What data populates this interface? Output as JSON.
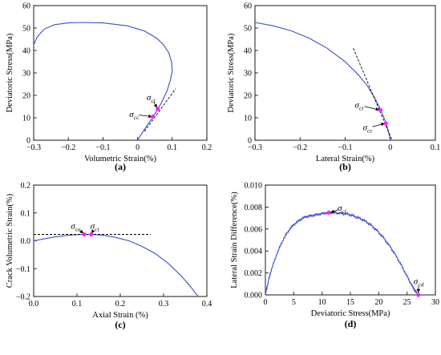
{
  "chart_data": [
    {
      "type": "line",
      "panel_label": "(a)",
      "xlabel": "Volumetric Strain(%)",
      "ylabel": "Deviatoric Stress(MPa)",
      "xlim": [
        -0.3,
        0.2
      ],
      "ylim": [
        0,
        60
      ],
      "xticks": [
        -0.3,
        -0.2,
        -0.1,
        0,
        0.1,
        0.2
      ],
      "yticks": [
        0,
        10,
        20,
        30,
        40,
        50,
        60
      ],
      "xtick_labels": [
        "−0.3",
        "−0.2",
        "−0.1",
        "0",
        "0.1",
        "0.2"
      ],
      "ytick_labels": [
        "0",
        "10",
        "20",
        "30",
        "40",
        "50",
        "60"
      ],
      "series": [
        {
          "style": "solid",
          "color": "#3b4bd4",
          "x": [
            0.0,
            0.012,
            0.025,
            0.04,
            0.055,
            0.07,
            0.085,
            0.095,
            0.1,
            0.098,
            0.09,
            0.075,
            0.055,
            0.02,
            -0.03,
            -0.1,
            -0.16,
            -0.2,
            -0.24,
            -0.27,
            -0.29,
            -0.3
          ],
          "y": [
            0,
            3,
            6,
            9.5,
            13,
            17,
            22,
            27,
            31,
            35,
            39,
            42.5,
            45.5,
            48.7,
            51,
            52.3,
            52.5,
            52.3,
            51.5,
            49.5,
            46,
            42.5
          ]
        },
        {
          "style": "dashed",
          "color": "#000000",
          "x": [
            0.02,
            0.11
          ],
          "y": [
            4,
            23
          ]
        }
      ],
      "points": [
        {
          "x": 0.044,
          "y": 10.5,
          "color": "#ff22ff"
        },
        {
          "x": 0.058,
          "y": 14,
          "color": "#ff22ff"
        }
      ],
      "annotations": [
        {
          "sym": "σ",
          "sub": "ci",
          "x": 0.04,
          "y": 19,
          "ax": 0.056,
          "ay": 14.4
        },
        {
          "sym": "σ",
          "sub": "cc",
          "x": -0.01,
          "y": 11.5,
          "ax": 0.042,
          "ay": 10.5
        }
      ]
    },
    {
      "type": "line",
      "panel_label": "(b)",
      "xlabel": "Lateral Strain(%)",
      "ylabel": "Deviatoric Stress(MPa)",
      "xlim": [
        -0.3,
        0.1
      ],
      "ylim": [
        0,
        60
      ],
      "xticks": [
        -0.3,
        -0.2,
        -0.1,
        0,
        0.1
      ],
      "yticks": [
        0,
        10,
        20,
        30,
        40,
        50,
        60
      ],
      "xtick_labels": [
        "−0.3",
        "−0.2",
        "−0.1",
        "0",
        "0.1"
      ],
      "ytick_labels": [
        "0",
        "10",
        "20",
        "30",
        "40",
        "50",
        "60"
      ],
      "series": [
        {
          "style": "solid",
          "color": "#3b4bd4",
          "x": [
            0.0,
            -0.003,
            -0.007,
            -0.012,
            -0.018,
            -0.025,
            -0.035,
            -0.05,
            -0.07,
            -0.1,
            -0.14,
            -0.18,
            -0.22,
            -0.26,
            -0.3
          ],
          "y": [
            0,
            3,
            6,
            9,
            12,
            15,
            19,
            24,
            29,
            35,
            41,
            45.5,
            48.8,
            51,
            52.5
          ]
        },
        {
          "style": "dashed",
          "color": "#000000",
          "x": [
            -0.082,
            0.004
          ],
          "y": [
            41,
            0
          ]
        }
      ],
      "points": [
        {
          "x": -0.022,
          "y": 13.5,
          "color": "#ff22ff"
        },
        {
          "x": -0.01,
          "y": 7.5,
          "color": "#ff22ff"
        }
      ],
      "annotations": [
        {
          "sym": "σ",
          "sub": "ci",
          "x": -0.068,
          "y": 15.5,
          "ax": -0.024,
          "ay": 13.5
        },
        {
          "sym": "σ",
          "sub": "cc",
          "x": -0.05,
          "y": 5.5,
          "ax": -0.012,
          "ay": 7.5
        }
      ]
    },
    {
      "type": "line",
      "panel_label": "(c)",
      "xlabel": "Axial  Strain (%)",
      "ylabel": "Crack Volumetric Strain(%)",
      "xlim": [
        0,
        0.4
      ],
      "ylim": [
        -0.2,
        0.2
      ],
      "xticks": [
        0,
        0.1,
        0.2,
        0.3,
        0.4
      ],
      "yticks": [
        -0.2,
        -0.1,
        0,
        0.1,
        0.2
      ],
      "xtick_labels": [
        "0.0",
        "0.1",
        "0.2",
        "0.3",
        "0.4"
      ],
      "ytick_labels": [
        "−0.2",
        "−0.1",
        "0.0",
        "0.1",
        "0.2"
      ],
      "series": [
        {
          "style": "solid",
          "color": "#3b4bd4",
          "x": [
            0.0,
            0.02,
            0.05,
            0.08,
            0.11,
            0.135,
            0.16,
            0.19,
            0.22,
            0.25,
            0.28,
            0.31,
            0.34,
            0.36,
            0.38
          ],
          "y": [
            0.0,
            0.006,
            0.014,
            0.02,
            0.023,
            0.023,
            0.02,
            0.012,
            0.0,
            -0.02,
            -0.045,
            -0.08,
            -0.125,
            -0.16,
            -0.2
          ]
        },
        {
          "style": "dashed",
          "color": "#000000",
          "x": [
            0.0,
            0.27
          ],
          "y": [
            0.023,
            0.023
          ]
        }
      ],
      "points": [
        {
          "x": 0.117,
          "y": 0.023,
          "color": "#ff22ff"
        },
        {
          "x": 0.133,
          "y": 0.023,
          "color": "#ff22ff"
        }
      ],
      "annotations": [
        {
          "sym": "σ",
          "sub": "cc",
          "x": 0.097,
          "y": 0.052,
          "ax": 0.115,
          "ay": 0.026
        },
        {
          "sym": "σ",
          "sub": "ci",
          "x": 0.142,
          "y": 0.052,
          "ax": 0.134,
          "ay": 0.026
        }
      ]
    },
    {
      "type": "line",
      "panel_label": "(d)",
      "xlabel": "Deviatoric Stress(MPa)",
      "ylabel": "Lateral Strain Difference(%)",
      "xlim": [
        0,
        30
      ],
      "ylim": [
        0,
        0.01
      ],
      "xticks": [
        0,
        5,
        10,
        15,
        20,
        25,
        30
      ],
      "yticks": [
        0,
        0.002,
        0.004,
        0.006,
        0.008,
        0.01
      ],
      "xtick_labels": [
        "0",
        "5",
        "10",
        "15",
        "20",
        "25",
        "30"
      ],
      "ytick_labels": [
        "0.000",
        "0.002",
        "0.004",
        "0.006",
        "0.008",
        "0.010"
      ],
      "series": [
        {
          "style": "solid",
          "color": "#3b4bd4",
          "noisy": true,
          "x": [
            0.0,
            0.5,
            1.0,
            2.0,
            3.0,
            4.0,
            5.0,
            6.0,
            7.0,
            8.0,
            9.0,
            10.0,
            11.0,
            12.0,
            13.0,
            14.0,
            15.0,
            16.0,
            17.0,
            18.0,
            19.0,
            20.0,
            21.0,
            22.0,
            23.0,
            24.0,
            25.0,
            25.8,
            26.5,
            27.0
          ],
          "y": [
            0.0,
            0.0012,
            0.0022,
            0.0037,
            0.0049,
            0.0058,
            0.0064,
            0.0068,
            0.0071,
            0.0072,
            0.0073,
            0.0074,
            0.0075,
            0.0075,
            0.00745,
            0.0074,
            0.0073,
            0.0071,
            0.0069,
            0.0066,
            0.0062,
            0.0057,
            0.0051,
            0.0044,
            0.0036,
            0.0027,
            0.0017,
            0.0009,
            0.0003,
            0.0
          ]
        }
      ],
      "points": [
        {
          "x": 11.2,
          "y": 0.0075,
          "color": "#ff22ff"
        },
        {
          "x": 27.0,
          "y": 0.0,
          "color": "#ff22ff"
        }
      ],
      "annotations": [
        {
          "sym": "σ",
          "sub": "ci",
          "x": 13.6,
          "y": 0.0079,
          "ax": 11.5,
          "ay": 0.0075
        },
        {
          "sym": "σ",
          "sub": "cd",
          "x": 27.0,
          "y": 0.0012,
          "ax": 27.0,
          "ay": 0.0002
        }
      ]
    }
  ]
}
